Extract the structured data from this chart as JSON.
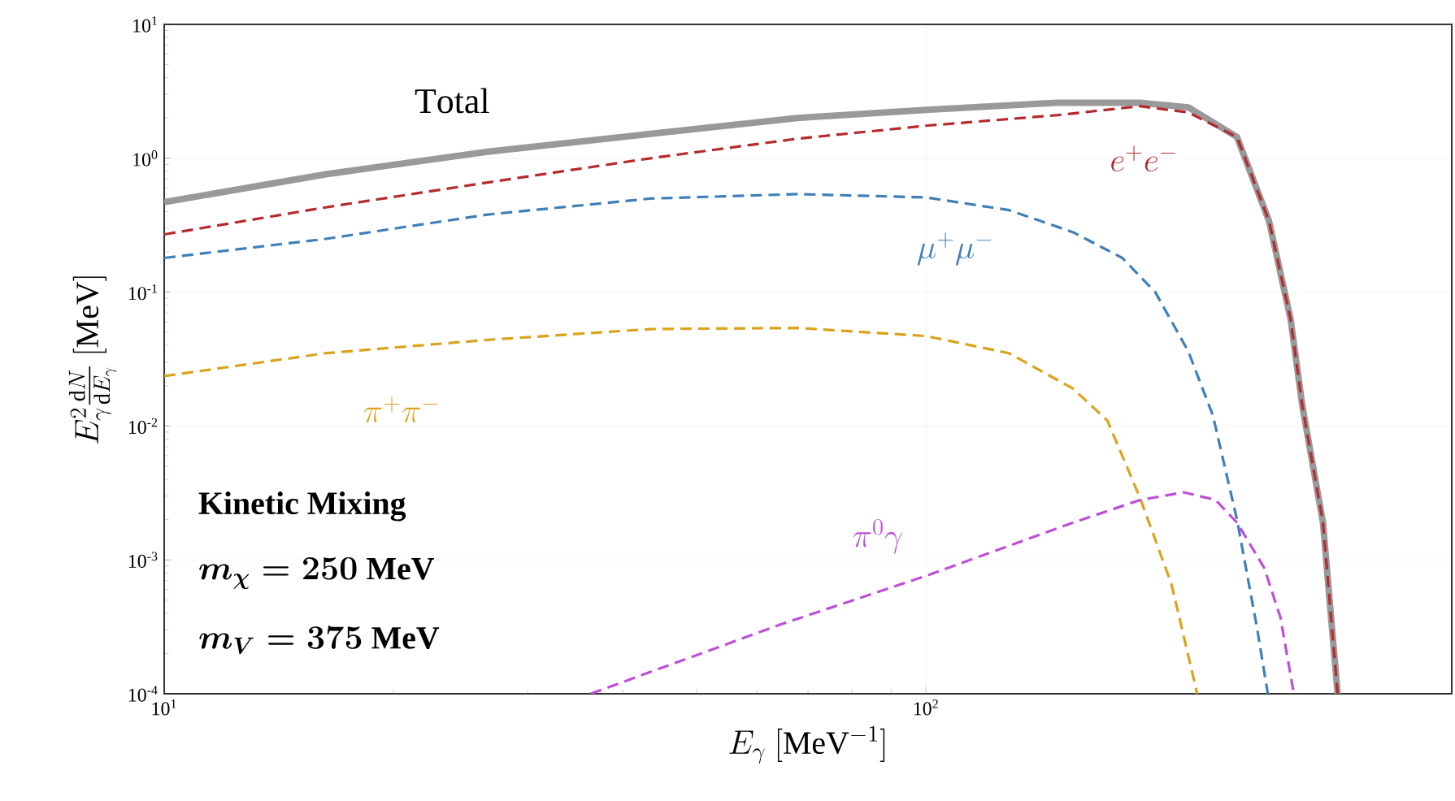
{
  "chart_data": {
    "type": "line",
    "xlabel": "E_\\gamma\\ [\\mathrm{MeV}^{-1}]",
    "ylabel": "E_\\gamma^2\\frac{\\mathrm{d}N}{\\mathrm{d}E_\\gamma}\\ [\\mathrm{MeV}]",
    "log": "xy",
    "xlim": [
      10,
      490
    ],
    "ylim": [
      0.0001,
      10
    ],
    "xticks": [
      {
        "value": 10,
        "label": "10$^{1}$"
      },
      {
        "value": 100,
        "label": "10$^{2}$"
      }
    ],
    "yticks": [
      {
        "value": 0.0001,
        "label": "10$^{-4}$"
      },
      {
        "value": 0.001,
        "label": "10$^{-3}$"
      },
      {
        "value": 0.01,
        "label": "10$^{-2}$"
      },
      {
        "value": 0.1,
        "label": "10$^{-1}$"
      },
      {
        "value": 1,
        "label": "10$^{0}$"
      },
      {
        "value": 10,
        "label": "10$^{1}$"
      }
    ],
    "grid": true,
    "series": [
      {
        "name": "\\mathrm{Total}",
        "color": "#999999",
        "line_style": "solid",
        "x": [
          10,
          16.3,
          26.6,
          43.5,
          67.8,
          100,
          149,
          191,
          221,
          256,
          282,
          301,
          312,
          332,
          347
        ],
        "values": [
          0.47,
          0.76,
          1.12,
          1.52,
          2.0,
          2.3,
          2.6,
          2.6,
          2.4,
          1.44,
          0.34,
          0.063,
          0.014,
          0.0019,
          0.0001
        ]
      },
      {
        "name": "e^+e^-",
        "color": "#b52a2e",
        "line_style": "dashed",
        "x": [
          10,
          16.3,
          26.6,
          43.5,
          67.8,
          100,
          149,
          191,
          221,
          256,
          282,
          301,
          312,
          332,
          347
        ],
        "values": [
          0.27,
          0.43,
          0.66,
          1.0,
          1.4,
          1.75,
          2.1,
          2.45,
          2.2,
          1.44,
          0.34,
          0.063,
          0.014,
          0.0019,
          0.0001
        ]
      },
      {
        "name": "\\mu^+\\mu^-",
        "color": "#3f7fb8",
        "line_style": "dashed",
        "x": [
          10,
          16.3,
          26.6,
          43.5,
          67.8,
          100,
          128.5,
          156,
          181,
          200,
          221,
          238,
          256,
          272,
          281
        ],
        "values": [
          0.18,
          0.25,
          0.38,
          0.5,
          0.54,
          0.51,
          0.41,
          0.28,
          0.18,
          0.1,
          0.036,
          0.012,
          0.002,
          0.00031,
          0.0001
        ]
      },
      {
        "name": "\\pi^+\\pi^-",
        "color": "#dba21b",
        "line_style": "dashed",
        "x": [
          10,
          16.3,
          26.6,
          43.5,
          67.8,
          100,
          128.5,
          156,
          173,
          191,
          210,
          227
        ],
        "values": [
          0.0236,
          0.035,
          0.044,
          0.053,
          0.054,
          0.047,
          0.035,
          0.019,
          0.011,
          0.0029,
          0.00066,
          0.0001
        ]
      },
      {
        "name": "\\pi^0\\gamma",
        "color": "#bf4fd8",
        "line_style": "dashed",
        "x": [
          36.3,
          64.5,
          100,
          156,
          191,
          218,
          240,
          256,
          278,
          292,
          304
        ],
        "values": [
          0.0001,
          0.00033,
          0.00076,
          0.0019,
          0.0028,
          0.0032,
          0.0028,
          0.0019,
          0.00087,
          0.00037,
          0.0001
        ]
      }
    ],
    "annotations": [
      "Kinetic Mixing",
      "\\boldsymbol{m_\\chi = 250\\ \\mathrm{MeV}}",
      "\\boldsymbol{m_V = 375\\ \\mathrm{MeV}}"
    ]
  }
}
